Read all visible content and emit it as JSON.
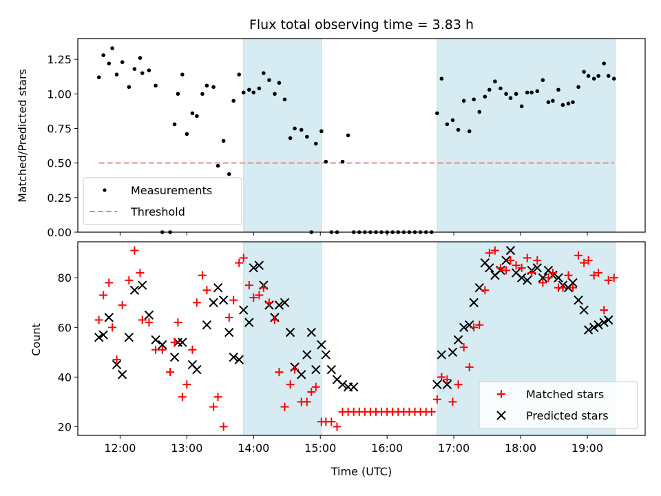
{
  "chart_data": [
    {
      "type": "scatter",
      "title": "Flux total observing time = 3.83 h",
      "xlabel": "",
      "ylabel": "Matched/Predicted stars",
      "xlim": [
        "11:22",
        "19:52"
      ],
      "ylim": [
        0,
        1.4
      ],
      "yticks": [
        "0.00",
        "0.25",
        "0.50",
        "0.75",
        "1.00",
        "1.25"
      ],
      "shaded_intervals": [
        [
          "13:51",
          "15:01"
        ],
        [
          "16:45",
          "19:25"
        ]
      ],
      "legend_position": "lower-left",
      "series": [
        {
          "name": "Measurements",
          "kind": "points",
          "color": "#000000",
          "x": [
            "11:41",
            "11:45",
            "11:50",
            "11:53",
            "11:57",
            "12:02",
            "12:08",
            "12:13",
            "12:18",
            "12:20",
            "12:26",
            "12:32",
            "12:38",
            "12:45",
            "12:49",
            "12:52",
            "12:56",
            "13:00",
            "13:05",
            "13:09",
            "13:14",
            "13:18",
            "13:24",
            "13:28",
            "13:33",
            "13:38",
            "13:42",
            "13:47",
            "13:51",
            "13:56",
            "14:00",
            "14:05",
            "14:09",
            "14:14",
            "14:19",
            "14:23",
            "14:28",
            "14:33",
            "14:37",
            "14:43",
            "14:48",
            "14:52",
            "14:56",
            "15:01",
            "15:05",
            "15:10",
            "15:15",
            "15:20",
            "15:25",
            "15:30",
            "15:35",
            "15:40",
            "15:45",
            "15:50",
            "15:55",
            "16:00",
            "16:05",
            "16:10",
            "16:15",
            "16:20",
            "16:25",
            "16:30",
            "16:35",
            "16:40",
            "16:45",
            "16:49",
            "16:54",
            "16:59",
            "17:04",
            "17:09",
            "17:14",
            "17:18",
            "17:23",
            "17:28",
            "17:32",
            "17:37",
            "17:42",
            "17:47",
            "17:51",
            "17:56",
            "18:01",
            "18:06",
            "18:10",
            "18:15",
            "18:20",
            "18:25",
            "18:29",
            "18:34",
            "18:38",
            "18:43",
            "18:47",
            "18:52",
            "18:57",
            "19:01",
            "19:06",
            "19:10",
            "19:15",
            "19:19",
            "19:24"
          ],
          "y": [
            1.12,
            1.28,
            1.22,
            1.33,
            1.14,
            1.23,
            1.05,
            1.18,
            1.26,
            1.15,
            1.17,
            1.06,
            0.0,
            0.0,
            0.78,
            1.0,
            1.14,
            0.71,
            0.86,
            0.84,
            1.0,
            1.06,
            1.05,
            0.48,
            0.66,
            0.42,
            0.95,
            1.14,
            1.01,
            1.03,
            1.01,
            1.04,
            1.15,
            1.1,
            1.0,
            1.08,
            0.96,
            0.68,
            0.75,
            0.74,
            0.69,
            0.0,
            0.64,
            0.73,
            0.51,
            0.0,
            0.0,
            0.51,
            0.7,
            0.0,
            0.0,
            0.0,
            0.0,
            0.0,
            0.0,
            0.0,
            0.0,
            0.0,
            0.0,
            0.0,
            0.0,
            0.0,
            0.0,
            0.0,
            0.86,
            1.11,
            0.78,
            0.81,
            0.74,
            0.95,
            0.73,
            0.96,
            0.87,
            0.98,
            1.03,
            1.09,
            1.04,
            1.0,
            0.97,
            1.0,
            0.91,
            1.01,
            1.01,
            1.02,
            1.1,
            0.94,
            0.95,
            1.03,
            0.92,
            0.93,
            0.94,
            1.05,
            1.16,
            1.13,
            1.11,
            1.13,
            1.22,
            1.13,
            1.11
          ]
        },
        {
          "name": "Threshold",
          "kind": "dashed-line",
          "color": "#f08080",
          "x": [
            "11:41",
            "19:24"
          ],
          "y": [
            0.5,
            0.5
          ]
        }
      ]
    },
    {
      "type": "scatter",
      "title": "",
      "xlabel": "Time (UTC)",
      "ylabel": "Count",
      "xlim": [
        "11:22",
        "19:52"
      ],
      "ylim": [
        16.5,
        94.5
      ],
      "xticks": [
        "12:00",
        "13:00",
        "14:00",
        "15:00",
        "16:00",
        "17:00",
        "18:00",
        "19:00"
      ],
      "yticks": [
        "20",
        "40",
        "60",
        "80"
      ],
      "shaded_intervals": [
        [
          "13:51",
          "15:01"
        ],
        [
          "16:45",
          "19:25"
        ]
      ],
      "legend_position": "lower-right",
      "series": [
        {
          "name": "Matched stars",
          "marker": "+",
          "color": "#ff0000",
          "x": [
            "11:41",
            "11:45",
            "11:50",
            "11:53",
            "11:57",
            "12:02",
            "12:08",
            "12:13",
            "12:18",
            "12:20",
            "12:26",
            "12:32",
            "12:38",
            "12:45",
            "12:49",
            "12:52",
            "12:56",
            "13:00",
            "13:05",
            "13:09",
            "13:14",
            "13:18",
            "13:24",
            "13:28",
            "13:33",
            "13:38",
            "13:42",
            "13:47",
            "13:51",
            "13:56",
            "14:00",
            "14:05",
            "14:09",
            "14:14",
            "14:19",
            "14:23",
            "14:28",
            "14:33",
            "14:37",
            "14:43",
            "14:48",
            "14:52",
            "14:56",
            "15:01",
            "15:05",
            "15:10",
            "15:15",
            "15:20",
            "15:25",
            "15:30",
            "15:35",
            "15:40",
            "15:45",
            "15:50",
            "15:55",
            "16:00",
            "16:05",
            "16:10",
            "16:15",
            "16:20",
            "16:25",
            "16:30",
            "16:35",
            "16:40",
            "16:45",
            "16:49",
            "16:54",
            "16:59",
            "17:04",
            "17:09",
            "17:14",
            "17:18",
            "17:23",
            "17:28",
            "17:32",
            "17:37",
            "17:42",
            "17:47",
            "17:51",
            "17:56",
            "18:01",
            "18:06",
            "18:10",
            "18:15",
            "18:20",
            "18:25",
            "18:29",
            "18:34",
            "18:38",
            "18:43",
            "18:47",
            "18:52",
            "18:57",
            "19:01",
            "19:06",
            "19:10",
            "19:15",
            "19:19",
            "19:24"
          ],
          "y": [
            63,
            73,
            78,
            60,
            47,
            69,
            79,
            91,
            82,
            63,
            62,
            51,
            51,
            42,
            54,
            62,
            32,
            37,
            51,
            70,
            81,
            75,
            28,
            32,
            20,
            64,
            71,
            86,
            88,
            77,
            72,
            73,
            76,
            70,
            63,
            42,
            28,
            37,
            43,
            30,
            30,
            34,
            36,
            22,
            22,
            22,
            20,
            26,
            26,
            26,
            26,
            26,
            26,
            26,
            26,
            26,
            26,
            26,
            26,
            26,
            26,
            26,
            26,
            26,
            31,
            40,
            39,
            30,
            37,
            52,
            44,
            60,
            61,
            75,
            90,
            91,
            84,
            83,
            87,
            85,
            84,
            88,
            82,
            87,
            78,
            80,
            82,
            76,
            76,
            81,
            76,
            89,
            86,
            87,
            81,
            82,
            67,
            79,
            80
          ]
        },
        {
          "name": "Predicted stars",
          "marker": "x",
          "color": "#000000",
          "x": [
            "11:41",
            "11:45",
            "11:50",
            "11:57",
            "12:02",
            "12:08",
            "12:13",
            "12:20",
            "12:26",
            "12:32",
            "12:38",
            "12:49",
            "12:52",
            "12:56",
            "13:05",
            "13:09",
            "13:18",
            "13:24",
            "13:28",
            "13:33",
            "13:38",
            "13:42",
            "13:47",
            "13:51",
            "13:56",
            "14:00",
            "14:05",
            "14:09",
            "14:14",
            "14:19",
            "14:23",
            "14:28",
            "14:33",
            "14:37",
            "14:43",
            "14:48",
            "14:52",
            "14:56",
            "15:01",
            "15:05",
            "15:10",
            "15:15",
            "15:20",
            "15:25",
            "15:30",
            "16:45",
            "16:49",
            "16:54",
            "16:59",
            "17:04",
            "17:09",
            "17:14",
            "17:18",
            "17:23",
            "17:28",
            "17:32",
            "17:37",
            "17:42",
            "17:47",
            "17:51",
            "17:56",
            "18:01",
            "18:06",
            "18:10",
            "18:15",
            "18:20",
            "18:25",
            "18:29",
            "18:34",
            "18:38",
            "18:43",
            "18:47",
            "18:52",
            "18:57",
            "19:01",
            "19:06",
            "19:10",
            "19:15",
            "19:19"
          ],
          "y": [
            56,
            57,
            64,
            45,
            41,
            56,
            75,
            77,
            65,
            55,
            53,
            48,
            54,
            54,
            45,
            43,
            61,
            70,
            76,
            71,
            58,
            48,
            47,
            67,
            62,
            84,
            85,
            77,
            69,
            64,
            69,
            70,
            58,
            44,
            41,
            49,
            58,
            43,
            53,
            49,
            43,
            39,
            37,
            36,
            36,
            37,
            49,
            37,
            50,
            55,
            60,
            61,
            70,
            76,
            86,
            84,
            81,
            83,
            87,
            91,
            82,
            80,
            79,
            83,
            84,
            80,
            83,
            81,
            80,
            77,
            76,
            78,
            71,
            67,
            59,
            60,
            61,
            62,
            63
          ]
        }
      ]
    }
  ]
}
